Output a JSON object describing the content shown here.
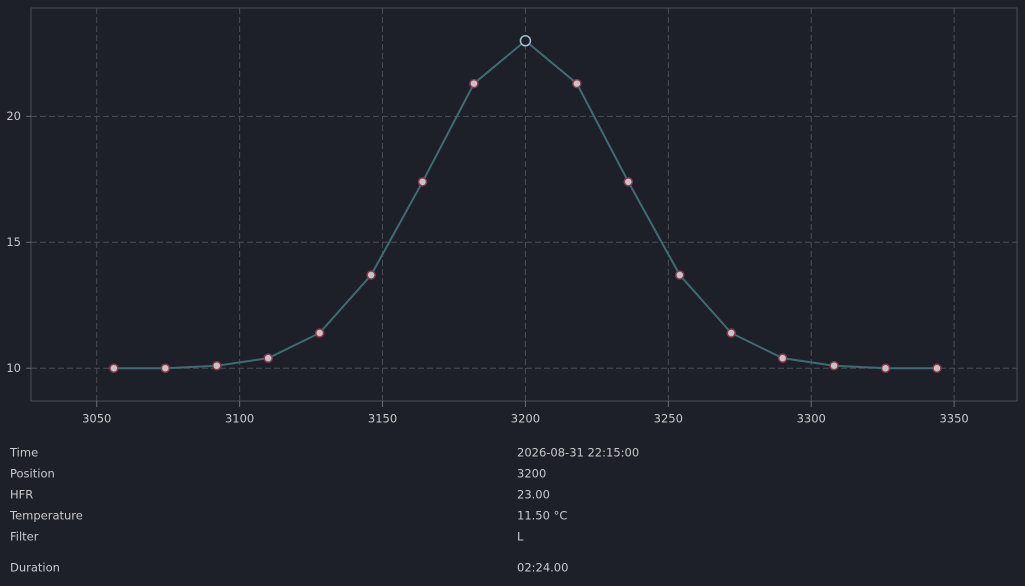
{
  "chart_data": {
    "type": "line",
    "x": [
      3056,
      3074,
      3092,
      3110,
      3128,
      3146,
      3164,
      3182,
      3200,
      3218,
      3236,
      3254,
      3272,
      3290,
      3308,
      3326,
      3344
    ],
    "values": [
      10.0,
      10.0,
      10.1,
      10.4,
      11.4,
      13.7,
      17.4,
      21.3,
      23.0,
      21.3,
      17.4,
      13.7,
      11.4,
      10.4,
      10.1,
      10.0,
      10.0
    ],
    "color": "#3f6b73",
    "xlim": [
      3027,
      3372
    ],
    "xticks": [
      3050,
      3100,
      3150,
      3200,
      3250,
      3300,
      3350
    ],
    "ylim": [
      8.7,
      24.3
    ],
    "yticks": [
      10,
      15,
      20
    ],
    "grid": true
  },
  "details": [
    {
      "label": "Time",
      "value": "2026-08-31 22:15:00"
    },
    {
      "label": "Position",
      "value": "3200"
    },
    {
      "label": "HFR",
      "value": "23.00"
    },
    {
      "label": "Temperature",
      "value": "11.50 °C"
    },
    {
      "label": "Filter",
      "value": "L"
    },
    {
      "label": "Duration",
      "value": "02:24.00"
    }
  ]
}
